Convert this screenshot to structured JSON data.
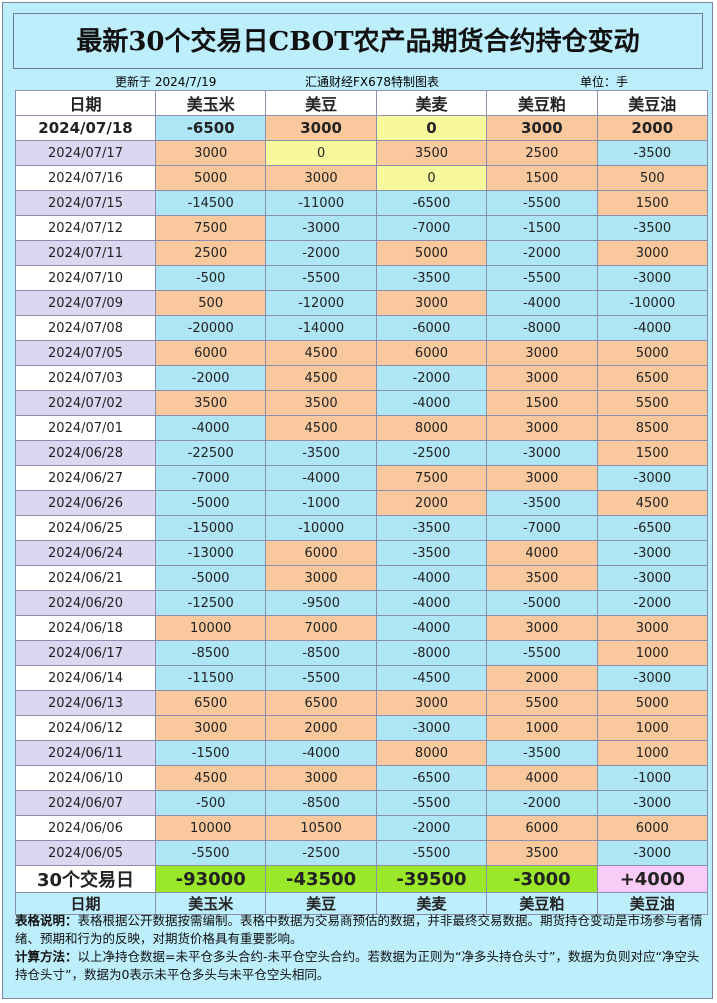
{
  "header": {
    "title": "最新30个交易日CBOT农产品期货合约持仓变动",
    "updated": "更新于 2024/7/19",
    "source": "汇通财经FX678特制图表",
    "unit": "单位：手"
  },
  "table": {
    "columns": [
      "日期",
      "美玉米",
      "美豆",
      "美麦",
      "美豆粕",
      "美豆油"
    ],
    "rows": [
      [
        "2024/07/18",
        -6500,
        3000,
        0,
        3000,
        2000
      ],
      [
        "2024/07/17",
        3000,
        0,
        3500,
        2500,
        -3500
      ],
      [
        "2024/07/16",
        5000,
        3000,
        0,
        1500,
        500
      ],
      [
        "2024/07/15",
        -14500,
        -11000,
        -6500,
        -5500,
        1500
      ],
      [
        "2024/07/12",
        7500,
        -3000,
        -7000,
        -1500,
        -3500
      ],
      [
        "2024/07/11",
        2500,
        -2000,
        5000,
        -2000,
        3000
      ],
      [
        "2024/07/10",
        -500,
        -5500,
        -3500,
        -5500,
        -3000
      ],
      [
        "2024/07/09",
        500,
        -12000,
        3000,
        -4000,
        -10000
      ],
      [
        "2024/07/08",
        -20000,
        -14000,
        -6000,
        -8000,
        -4000
      ],
      [
        "2024/07/05",
        6000,
        4500,
        6000,
        3000,
        5000
      ],
      [
        "2024/07/03",
        -2000,
        4500,
        -2000,
        3000,
        6500
      ],
      [
        "2024/07/02",
        3500,
        3500,
        -4000,
        1500,
        5500
      ],
      [
        "2024/07/01",
        -4000,
        4500,
        8000,
        3000,
        8500
      ],
      [
        "2024/06/28",
        -22500,
        -3500,
        -2500,
        -3000,
        1500
      ],
      [
        "2024/06/27",
        -7000,
        -4000,
        7500,
        3000,
        -3000
      ],
      [
        "2024/06/26",
        -5000,
        -1000,
        2000,
        -3500,
        4500
      ],
      [
        "2024/06/25",
        -15000,
        -10000,
        -3500,
        -7000,
        -6500
      ],
      [
        "2024/06/24",
        -13000,
        6000,
        -3500,
        4000,
        -3000
      ],
      [
        "2024/06/21",
        -5000,
        3000,
        -4000,
        3500,
        -3000
      ],
      [
        "2024/06/20",
        -12500,
        -9500,
        -4000,
        -5000,
        -2000
      ],
      [
        "2024/06/18",
        10000,
        7000,
        -4000,
        3000,
        3000
      ],
      [
        "2024/06/17",
        -8500,
        -8500,
        -8000,
        -5500,
        1000
      ],
      [
        "2024/06/14",
        -11500,
        -5500,
        -4500,
        2000,
        -3000
      ],
      [
        "2024/06/13",
        6500,
        6500,
        3000,
        5500,
        5000
      ],
      [
        "2024/06/12",
        3000,
        2000,
        -3000,
        1000,
        1000
      ],
      [
        "2024/06/11",
        -1500,
        -4000,
        8000,
        -3500,
        1000
      ],
      [
        "2024/06/10",
        4500,
        3000,
        -6500,
        4000,
        -1000
      ],
      [
        "2024/06/07",
        -500,
        -8500,
        -5500,
        -2000,
        -3000
      ],
      [
        "2024/06/06",
        10000,
        10500,
        -2000,
        6000,
        6000
      ],
      [
        "2024/06/05",
        -5500,
        -2500,
        -5500,
        3500,
        -3000
      ]
    ],
    "total": [
      "30个交易日",
      -93000,
      -43500,
      -39500,
      -3000,
      "+4000"
    ]
  },
  "notes": [
    {
      "label": "表格说明：",
      "text": "表格根据公开数据按需编制。表格中数据为交易商预估的数据，并非最终交易数据。期货持仓变动是市场参与者情绪、预期和行为的反映，对期货价格具有重要影响。"
    },
    {
      "label": "计算方法：",
      "text": "以上净持仓数据=未平仓多头合约-未平仓空头合约。若数据为正则为“净多头持仓头寸”，数据为负则对应“净空头持仓头寸”，数据为0表示未平仓多头与未平仓空头相同。"
    }
  ]
}
